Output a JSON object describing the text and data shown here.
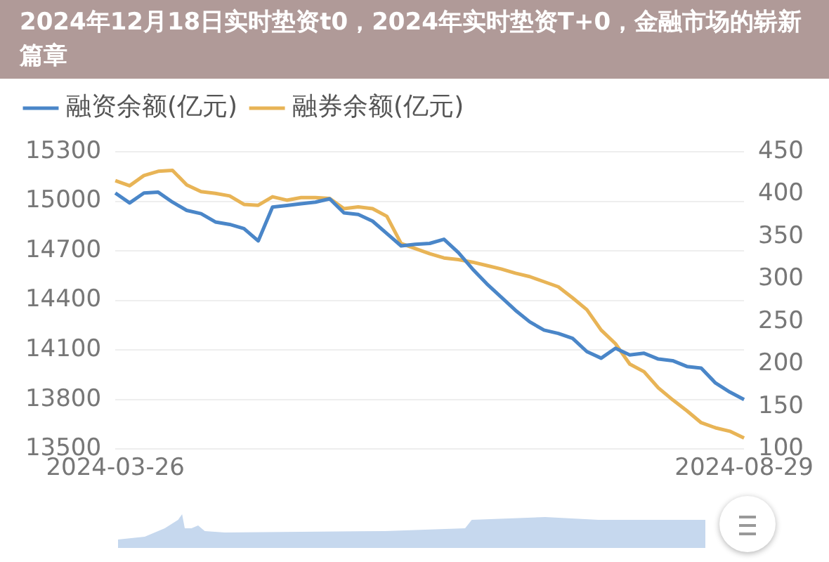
{
  "chart_data": {
    "type": "line",
    "title": "2024年12月18日实时垫资t0，2024年实时垫资T+0，金融市场的崭新篇章",
    "categories": [
      "2024-03-26",
      null,
      null,
      null,
      null,
      null,
      null,
      null,
      null,
      null,
      null,
      null,
      null,
      null,
      null,
      null,
      null,
      null,
      null,
      null,
      null,
      null,
      null,
      null,
      null,
      null,
      null,
      null,
      null,
      null,
      null,
      null,
      null,
      null,
      null,
      null,
      null,
      null,
      null,
      null,
      null,
      null,
      null,
      null,
      "2024-08-29"
    ],
    "series": [
      {
        "name": "融资余额(亿元)",
        "color": "#4a86c8",
        "values": [
          15050,
          14990,
          15050,
          15055,
          14995,
          14945,
          14925,
          14875,
          14860,
          14835,
          14760,
          14965,
          14975,
          14985,
          14995,
          15015,
          14930,
          14920,
          14880,
          14805,
          14730,
          14740,
          14745,
          14770,
          14690,
          14590,
          14500,
          14420,
          14340,
          14270,
          14220,
          14200,
          14170,
          14090,
          14050,
          14110,
          14070,
          14080,
          14045,
          14035,
          14000,
          13990,
          13900,
          13845,
          13800
        ]
      },
      {
        "name": "融券余额(亿元)",
        "color": "#e8b456",
        "axis": "y2",
        "values": [
          416,
          410,
          422,
          427,
          428,
          411,
          403,
          401,
          398,
          388,
          387,
          397,
          393,
          396,
          396,
          395,
          383,
          385,
          383,
          374,
          342,
          336,
          330,
          325,
          323,
          320,
          316,
          312,
          307,
          303,
          297,
          291,
          278,
          264,
          240,
          224,
          200,
          191,
          172,
          158,
          145,
          131,
          125,
          121,
          113
        ]
      }
    ],
    "ylim": [
      13500,
      15300
    ],
    "yticks": [
      13500,
      13800,
      14100,
      14400,
      14700,
      15000,
      15300
    ],
    "y2lim": [
      100,
      450
    ],
    "y2ticks": [
      100,
      150,
      200,
      250,
      300,
      350,
      400,
      450
    ],
    "grid": "y",
    "legend": "top left",
    "marker": "none",
    "line_style": "solid"
  }
}
